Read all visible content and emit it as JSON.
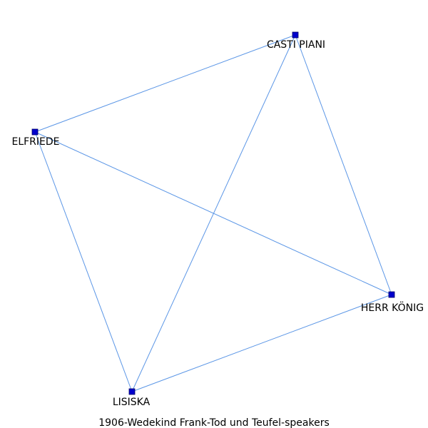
{
  "graph": {
    "nodes": [
      {
        "id": "casti",
        "label": "CASTI PIANI"
      },
      {
        "id": "elfriede",
        "label": "ELFRIEDE"
      },
      {
        "id": "koenig",
        "label": "HERR KÖNIG"
      },
      {
        "id": "lisiska",
        "label": "LISISKA"
      }
    ],
    "edges": [
      [
        "casti",
        "elfriede"
      ],
      [
        "casti",
        "lisiska"
      ],
      [
        "casti",
        "koenig"
      ],
      [
        "elfriede",
        "koenig"
      ],
      [
        "elfriede",
        "lisiska"
      ],
      [
        "lisiska",
        "koenig"
      ]
    ],
    "colors": {
      "edge": "#5b96e6",
      "node": "#0000cc"
    }
  },
  "caption": "1906-Wedekind  Frank-Tod  und  Teufel-speakers"
}
